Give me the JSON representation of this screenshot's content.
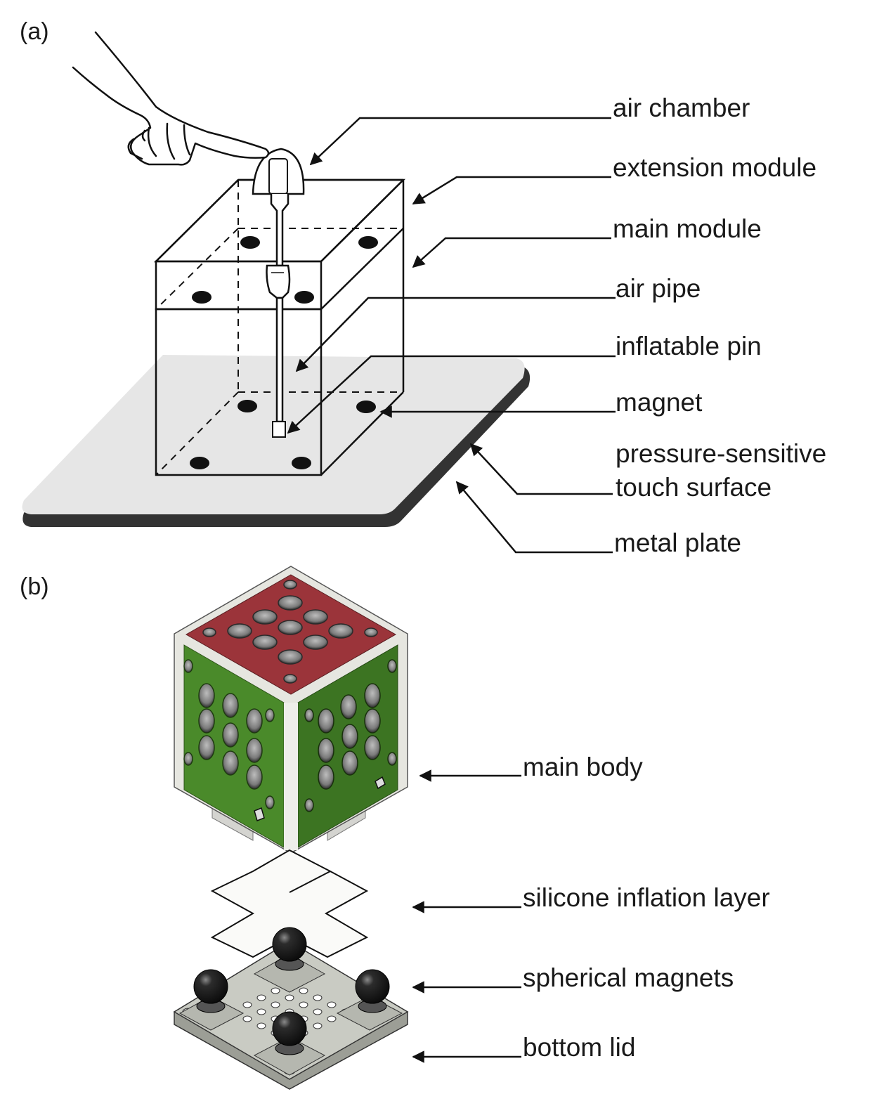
{
  "panels": {
    "a": "(a)",
    "b": "(b)"
  },
  "labels_a": {
    "air_chamber": "air chamber",
    "extension_module": "extension module",
    "main_module": "main module",
    "air_pipe": "air pipe",
    "inflatable_pin": "inflatable pin",
    "magnet": "magnet",
    "pressure_sensitive": "pressure-sensitive",
    "touch_surface": "touch surface",
    "metal_plate": "metal plate"
  },
  "labels_b": {
    "main_body": "main body",
    "silicone_inflation_layer": "silicone inflation layer",
    "spherical_magnets": "spherical magnets",
    "bottom_lid": "bottom lid"
  },
  "colors": {
    "top_face": "#9b343a",
    "left_face": "#4a8a2a",
    "right_face": "#3c7422",
    "frame": "#e6e6e0",
    "plate": "#e6e6e6",
    "plate_edge": "#333333",
    "lid": "#c9cbc3",
    "magnet_ball": "#1c1c1c"
  }
}
